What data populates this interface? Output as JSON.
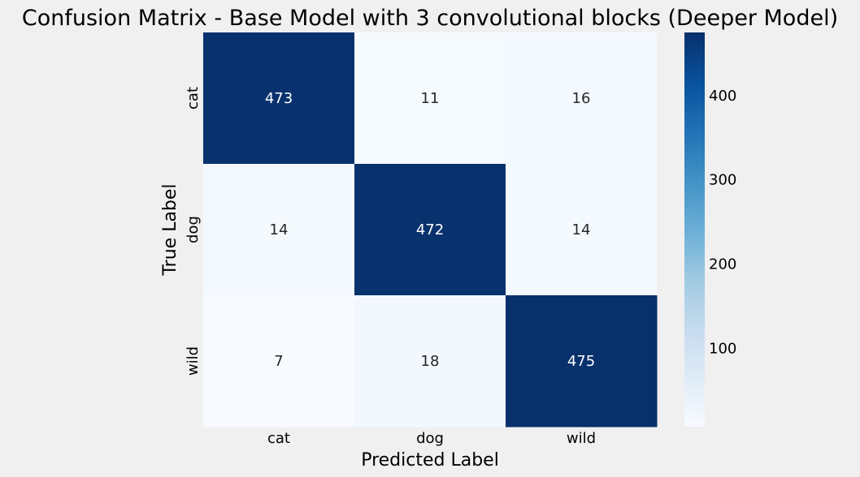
{
  "chart_data": {
    "type": "heatmap",
    "title": "Confusion Matrix - Base Model with 3 convolutional blocks (Deeper Model)",
    "xlabel": "Predicted Label",
    "ylabel": "True Label",
    "x_categories": [
      "cat",
      "dog",
      "wild"
    ],
    "y_categories": [
      "cat",
      "dog",
      "wild"
    ],
    "values": [
      [
        473,
        11,
        16
      ],
      [
        14,
        472,
        14
      ],
      [
        7,
        18,
        475
      ]
    ],
    "colormap": "Blues",
    "colors": {
      "low": "#f7fbff",
      "high": "#08306b",
      "background": "#f0f0f0"
    },
    "colorbar": {
      "range": [
        7,
        475
      ],
      "ticks": [
        100,
        200,
        300,
        400
      ],
      "tick_labels": [
        "100",
        "200",
        "300",
        "400"
      ]
    }
  }
}
